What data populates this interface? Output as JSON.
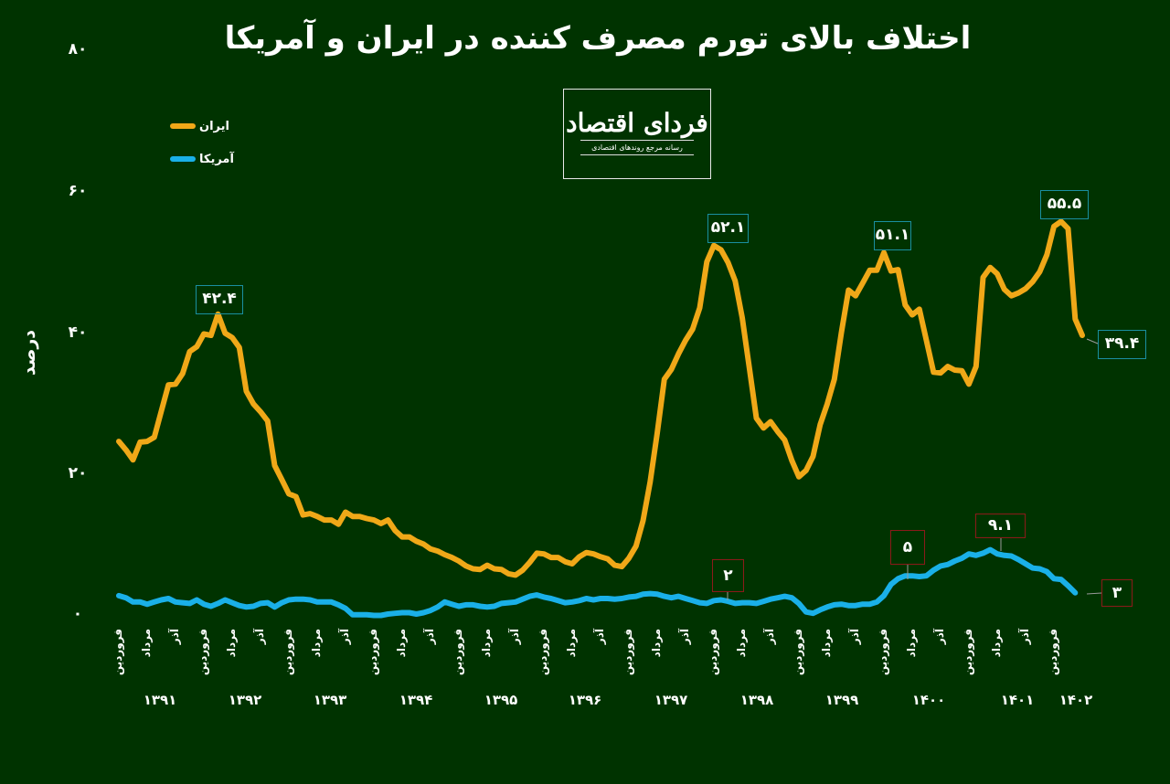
{
  "title": "اختلاف بالای تورم مصرف کننده در ایران و آمریکا",
  "logo": {
    "main": "فردای اقتصاد",
    "sub": "رسانه مرجع روندهای اقتصادی"
  },
  "y_axis": {
    "label": "درصد",
    "ticks": [
      "۰",
      "۲۰",
      "۴۰",
      "۶۰",
      "۸۰"
    ]
  },
  "legend": [
    {
      "label": "ایران",
      "color": "#F0A818"
    },
    {
      "label": "آمریکا",
      "color": "#1AB0E8"
    }
  ],
  "x_axis": {
    "month_labels": [
      "فروردین",
      "مرداد",
      "آذر"
    ],
    "years": [
      "۱۳۹۱",
      "۱۳۹۲",
      "۱۳۹۳",
      "۱۳۹۴",
      "۱۳۹۵",
      "۱۳۹۶",
      "۱۳۹۷",
      "۱۳۹۸",
      "۱۳۹۹",
      "۱۴۰۰",
      "۱۴۰۱",
      "۱۴۰۲"
    ]
  },
  "annotations": {
    "iran": [
      {
        "text": "۴۲.۴",
        "value": 42.4
      },
      {
        "text": "۵۲.۱",
        "value": 52.1
      },
      {
        "text": "۵۱.۱",
        "value": 51.1
      },
      {
        "text": "۵۵.۵",
        "value": 55.5
      },
      {
        "text": "۳۹.۴",
        "value": 39.4
      }
    ],
    "us": [
      {
        "text": "۲",
        "value": 2
      },
      {
        "text": "۵",
        "value": 5
      },
      {
        "text": "۹.۱",
        "value": 9.1
      },
      {
        "text": "۳",
        "value": 3
      }
    ]
  },
  "chart_data": {
    "type": "line",
    "title": "اختلاف بالای تورم مصرف کننده در ایران و آمریکا",
    "xlabel": "",
    "ylabel": "درصد",
    "ylim": [
      0,
      80
    ],
    "grid": false,
    "legend_position": "top-left",
    "x_start": "فروردین ۱۳۹۱",
    "x_end": "تیر ۱۴۰۲",
    "x_step": "month",
    "series": [
      {
        "name": "ایران",
        "color": "#F0A818",
        "values": [
          24.4,
          23.2,
          21.8,
          24.3,
          24.4,
          25.0,
          28.7,
          32.4,
          32.5,
          34.0,
          37.1,
          37.8,
          39.6,
          39.4,
          42.4,
          39.7,
          39.1,
          37.7,
          31.5,
          29.7,
          28.6,
          27.3,
          21.0,
          19.0,
          17.0,
          16.6,
          14.0,
          14.2,
          13.8,
          13.3,
          13.3,
          12.7,
          14.4,
          13.8,
          13.8,
          13.5,
          13.3,
          12.8,
          13.3,
          11.8,
          10.9,
          10.9,
          10.3,
          9.9,
          9.2,
          8.9,
          8.4,
          8.0,
          7.5,
          6.8,
          6.4,
          6.3,
          6.9,
          6.4,
          6.3,
          5.7,
          5.5,
          6.2,
          7.3,
          8.6,
          8.5,
          8.0,
          8.0,
          7.4,
          7.1,
          8.1,
          8.7,
          8.5,
          8.1,
          7.8,
          6.9,
          6.7,
          7.9,
          9.6,
          13.2,
          18.7,
          25.6,
          33.2,
          34.6,
          36.8,
          38.7,
          40.3,
          43.3,
          49.8,
          52.1,
          51.5,
          49.7,
          47.1,
          41.9,
          34.8,
          27.7,
          26.3,
          27.2,
          25.8,
          24.6,
          21.7,
          19.4,
          20.3,
          22.3,
          26.8,
          29.7,
          33.2,
          39.8,
          45.8,
          45.0,
          46.8,
          48.6,
          48.6,
          51.1,
          48.5,
          48.7,
          43.7,
          42.3,
          43.1,
          38.7,
          34.2,
          34.1,
          35.0,
          34.5,
          34.4,
          32.5,
          35.0,
          47.6,
          49.0,
          48.1,
          45.9,
          45.0,
          45.4,
          46.0,
          47.0,
          48.4,
          50.8,
          54.8,
          55.5,
          54.5,
          41.7,
          39.4
        ]
      },
      {
        "name": "آمریکا",
        "color": "#1AB0E8",
        "values": [
          2.6,
          2.3,
          1.7,
          1.7,
          1.4,
          1.7,
          2.0,
          2.2,
          1.7,
          1.6,
          1.5,
          2.0,
          1.4,
          1.1,
          1.5,
          2.0,
          1.6,
          1.2,
          1.0,
          1.1,
          1.5,
          1.6,
          1.0,
          1.6,
          2.0,
          2.1,
          2.1,
          2.0,
          1.7,
          1.7,
          1.7,
          1.3,
          0.8,
          -0.1,
          -0.1,
          -0.1,
          -0.2,
          -0.2,
          0.0,
          0.1,
          0.2,
          0.2,
          0.0,
          0.2,
          0.5,
          1.0,
          1.7,
          1.4,
          1.1,
          1.3,
          1.3,
          1.1,
          1.0,
          1.1,
          1.5,
          1.6,
          1.7,
          2.1,
          2.5,
          2.7,
          2.4,
          2.2,
          1.9,
          1.6,
          1.7,
          1.9,
          2.2,
          2.0,
          2.2,
          2.2,
          2.1,
          2.2,
          2.4,
          2.5,
          2.8,
          2.9,
          2.8,
          2.5,
          2.3,
          2.5,
          2.2,
          1.9,
          1.6,
          1.5,
          1.9,
          2.0,
          1.8,
          1.5,
          1.6,
          1.6,
          1.5,
          1.8,
          2.1,
          2.3,
          2.5,
          2.3,
          1.5,
          0.3,
          0.1,
          0.6,
          1.0,
          1.3,
          1.4,
          1.2,
          1.2,
          1.4,
          1.4,
          1.7,
          2.6,
          4.2,
          5.0,
          5.4,
          5.4,
          5.3,
          5.4,
          6.2,
          6.8,
          7.0,
          7.5,
          7.9,
          8.5,
          8.3,
          8.6,
          9.1,
          8.5,
          8.3,
          8.2,
          7.7,
          7.1,
          6.5,
          6.4,
          6.0,
          5.0,
          4.9,
          4.0,
          3.0
        ]
      }
    ]
  }
}
